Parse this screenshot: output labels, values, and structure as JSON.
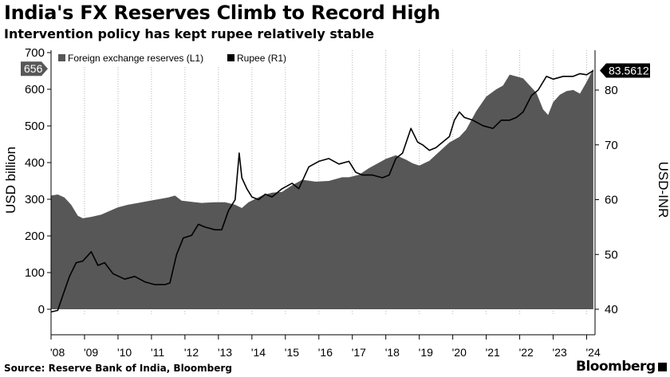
{
  "title": "India's FX Reserves Climb to Record High",
  "subtitle": "Intervention policy has kept rupee relatively stable",
  "source": "Source: Reserve Bank of India, Bloomberg",
  "brand": "Bloomberg",
  "chart_data": {
    "type": "area",
    "ylabel": "USD billion",
    "y2label": "USD-INR",
    "ylim": [
      0,
      700
    ],
    "y2lim": [
      40,
      88
    ],
    "yticks": [
      0,
      100,
      200,
      300,
      400,
      500,
      600,
      700
    ],
    "y2ticks": [
      40,
      50,
      60,
      70,
      80
    ],
    "xlim": [
      2008.0,
      2024.25
    ],
    "xticks": [
      {
        "value": 2008,
        "label": "'08"
      },
      {
        "value": 2009,
        "label": "'09"
      },
      {
        "value": 2010,
        "label": "'10"
      },
      {
        "value": 2011,
        "label": "'11"
      },
      {
        "value": 2012,
        "label": "'12"
      },
      {
        "value": 2013,
        "label": "'13"
      },
      {
        "value": 2014,
        "label": "'14"
      },
      {
        "value": 2015,
        "label": "'15"
      },
      {
        "value": 2016,
        "label": "'16"
      },
      {
        "value": 2017,
        "label": "'17"
      },
      {
        "value": 2018,
        "label": "'18"
      },
      {
        "value": 2019,
        "label": "'19"
      },
      {
        "value": 2020,
        "label": "'20"
      },
      {
        "value": 2021,
        "label": "'21"
      },
      {
        "value": 2022,
        "label": "'22"
      },
      {
        "value": 2023,
        "label": "'23"
      },
      {
        "value": 2024,
        "label": "'24"
      }
    ],
    "grid": "vertical-dotted",
    "legend_placement": "top-left",
    "series": [
      {
        "name": "Foreign exchange reserves (L1)",
        "type": "area",
        "axis": "left",
        "color": "#575757",
        "x": [
          2008.0,
          2008.2,
          2008.4,
          2008.6,
          2008.8,
          2008.95,
          2009.2,
          2009.5,
          2009.8,
          2010.0,
          2010.3,
          2010.6,
          2010.9,
          2011.2,
          2011.5,
          2011.7,
          2011.9,
          2012.2,
          2012.5,
          2012.9,
          2013.2,
          2013.5,
          2013.7,
          2013.9,
          2014.3,
          2014.6,
          2014.9,
          2015.2,
          2015.5,
          2015.9,
          2016.3,
          2016.7,
          2016.9,
          2017.2,
          2017.5,
          2017.8,
          2018.0,
          2018.3,
          2018.6,
          2018.8,
          2019.0,
          2019.3,
          2019.6,
          2019.9,
          2020.2,
          2020.4,
          2020.7,
          2021.0,
          2021.3,
          2021.5,
          2021.7,
          2021.9,
          2022.1,
          2022.3,
          2022.5,
          2022.7,
          2022.85,
          2023.0,
          2023.2,
          2023.4,
          2023.6,
          2023.8,
          2024.0,
          2024.2
        ],
        "values": [
          310,
          313,
          305,
          285,
          255,
          248,
          252,
          258,
          270,
          278,
          285,
          290,
          295,
          300,
          305,
          310,
          296,
          293,
          290,
          292,
          292,
          285,
          276,
          292,
          310,
          318,
          320,
          338,
          353,
          348,
          350,
          360,
          360,
          367,
          385,
          400,
          410,
          420,
          408,
          398,
          392,
          405,
          430,
          455,
          470,
          490,
          540,
          580,
          600,
          610,
          640,
          635,
          630,
          610,
          590,
          545,
          530,
          565,
          585,
          595,
          598,
          588,
          620,
          656
        ]
      },
      {
        "name": "Rupee (R1)",
        "type": "line",
        "axis": "right",
        "color": "#000000",
        "x": [
          2008.0,
          2008.2,
          2008.35,
          2008.55,
          2008.75,
          2008.95,
          2009.2,
          2009.4,
          2009.6,
          2009.85,
          2010.2,
          2010.5,
          2010.8,
          2011.1,
          2011.4,
          2011.55,
          2011.75,
          2011.95,
          2012.2,
          2012.4,
          2012.6,
          2012.9,
          2013.1,
          2013.3,
          2013.5,
          2013.62,
          2013.7,
          2013.85,
          2014.0,
          2014.2,
          2014.4,
          2014.6,
          2014.9,
          2015.2,
          2015.4,
          2015.7,
          2016.0,
          2016.3,
          2016.6,
          2016.9,
          2017.1,
          2017.3,
          2017.6,
          2017.9,
          2018.1,
          2018.3,
          2018.5,
          2018.75,
          2018.95,
          2019.1,
          2019.3,
          2019.5,
          2019.7,
          2019.9,
          2020.05,
          2020.2,
          2020.35,
          2020.6,
          2020.9,
          2021.2,
          2021.45,
          2021.7,
          2021.9,
          2022.1,
          2022.35,
          2022.55,
          2022.8,
          2023.0,
          2023.3,
          2023.6,
          2023.8,
          2024.0,
          2024.2
        ],
        "values": [
          39.5,
          39.8,
          42.5,
          46,
          48.5,
          48.8,
          50.5,
          48,
          48.5,
          46.5,
          45.5,
          46,
          45,
          44.5,
          44.5,
          44.8,
          50,
          53,
          53.5,
          55.5,
          55,
          54.5,
          54.5,
          58,
          60,
          68.5,
          64,
          62,
          60.5,
          60,
          61,
          60.5,
          62,
          63,
          62,
          66,
          67,
          67.5,
          66.5,
          67,
          65,
          64.5,
          64.5,
          64,
          64.5,
          67.5,
          68.5,
          73,
          70.5,
          70,
          69,
          69.5,
          70.5,
          71.5,
          74.5,
          76,
          75,
          74.5,
          73.5,
          73,
          74.5,
          74.5,
          75,
          76,
          79,
          80,
          82.5,
          82,
          82.5,
          82.5,
          83,
          82.8,
          83.56
        ]
      }
    ],
    "last_value_labels": {
      "left": "656",
      "right": "83.5612"
    }
  }
}
